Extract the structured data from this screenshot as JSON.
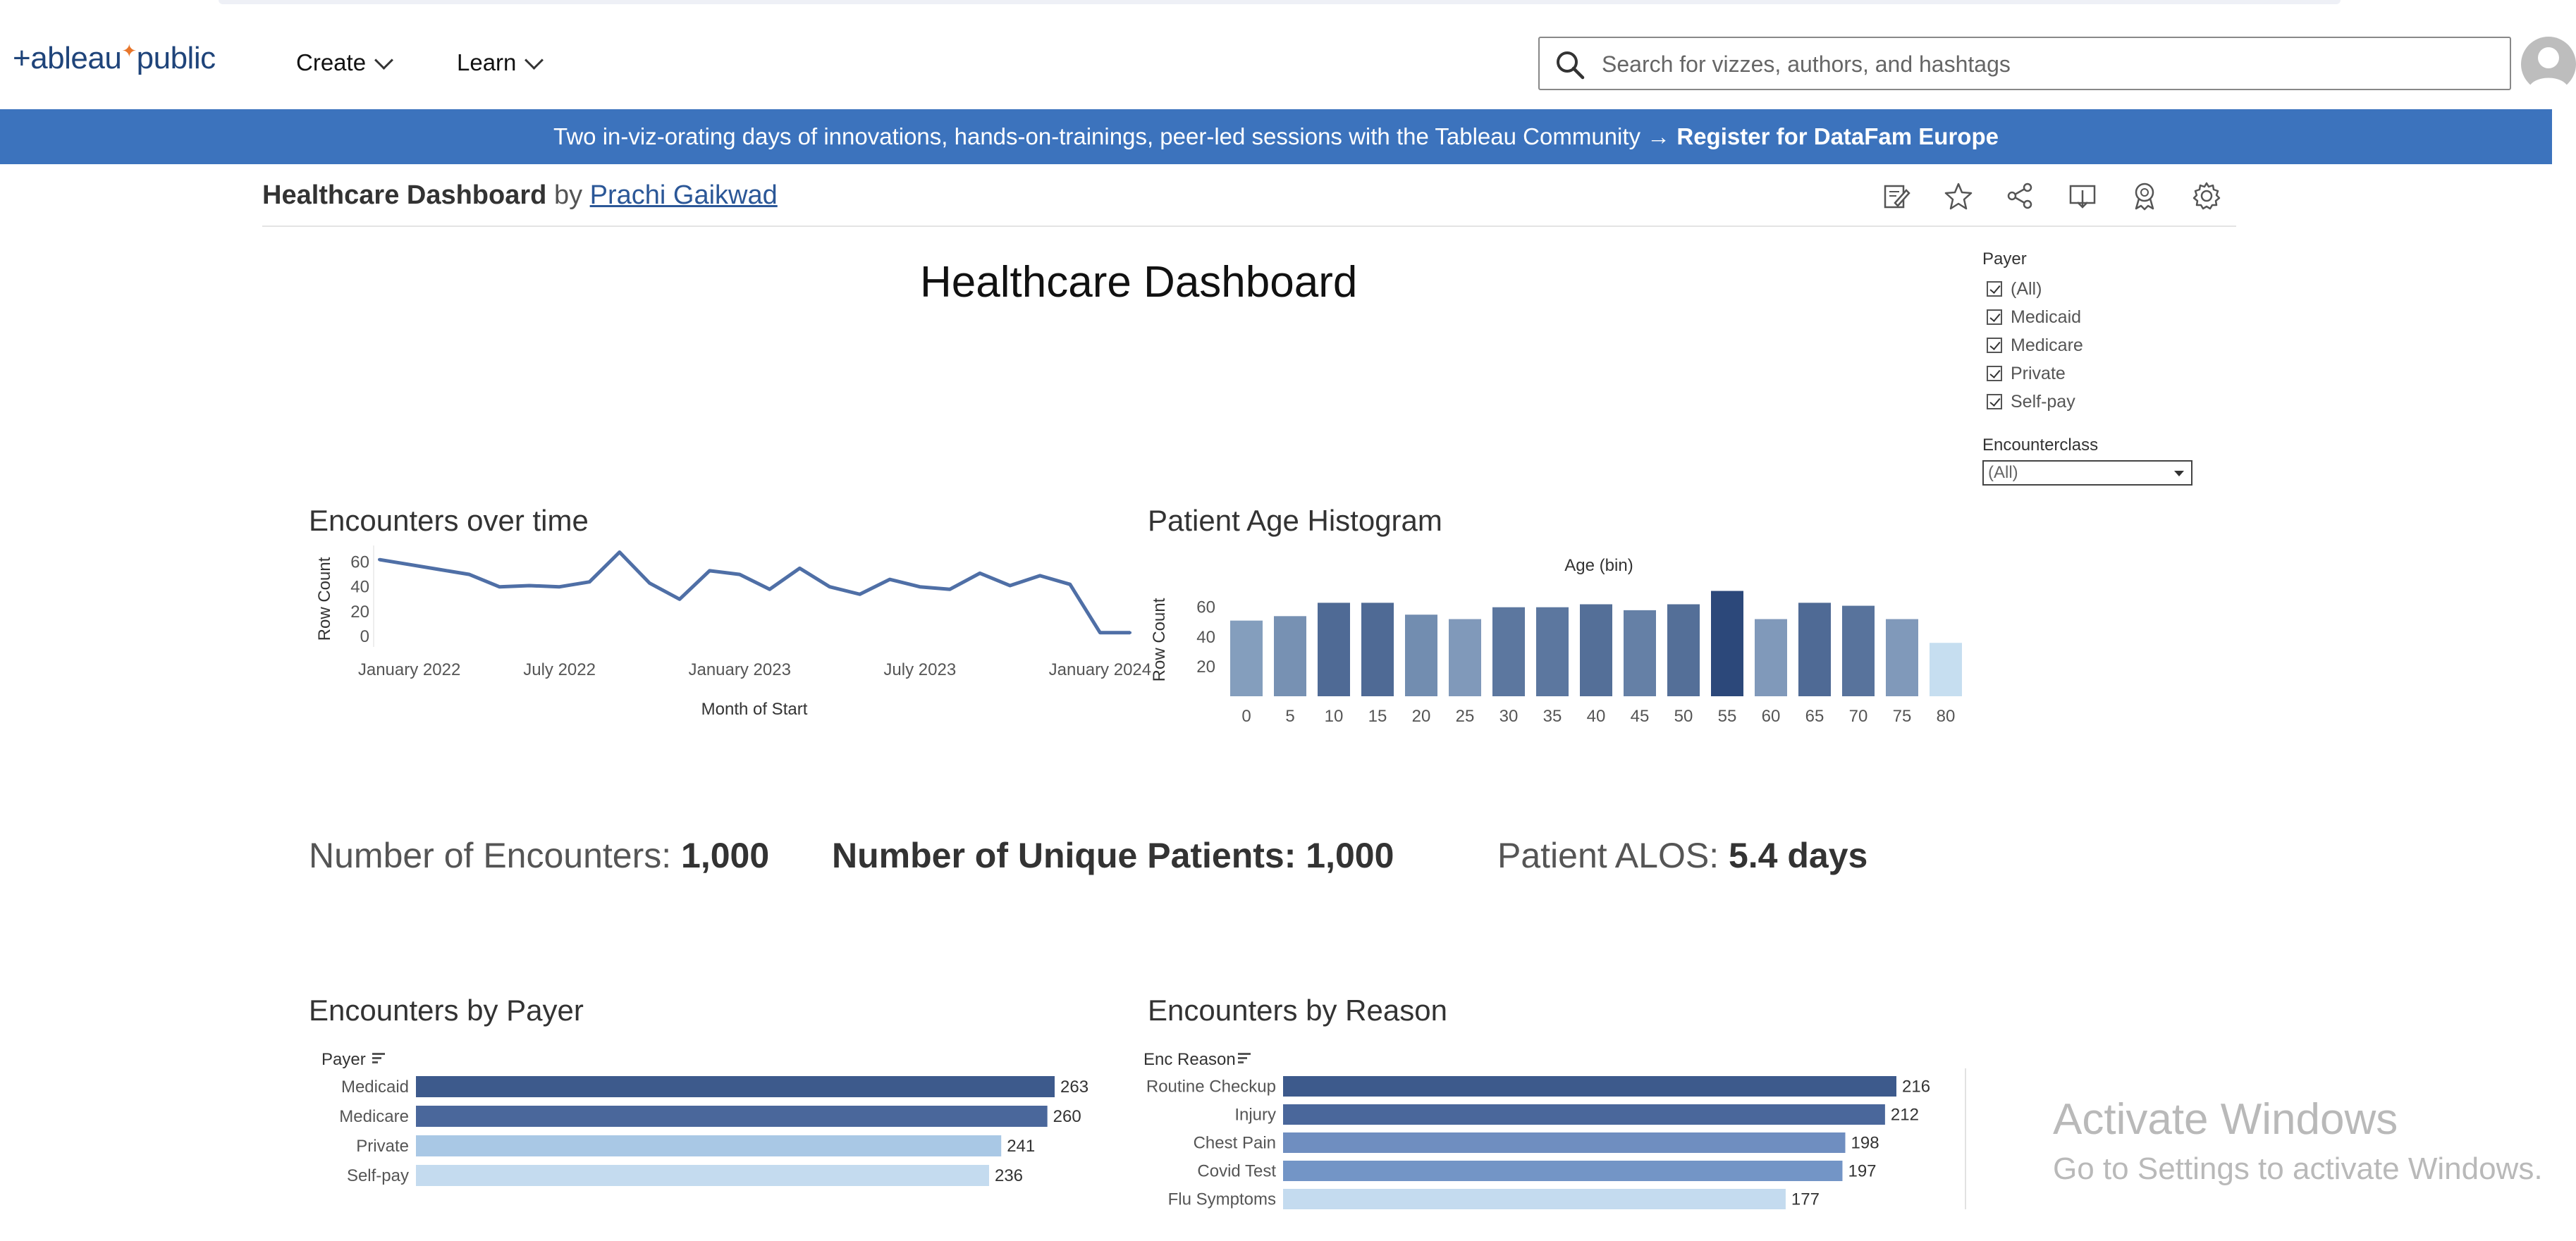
{
  "header": {
    "logo_text": "+ableau",
    "logo_suffix": "public",
    "nav": [
      {
        "label": "Create"
      },
      {
        "label": "Learn"
      }
    ],
    "search_placeholder": "Search for vizzes, authors, and hashtags"
  },
  "banner": {
    "text": "Two in-viz-orating days of innovations, hands-on-trainings, peer-led sessions with the Tableau Community → ",
    "link": "Register for DataFam Europe"
  },
  "viz": {
    "title": "Healthcare Dashboard",
    "by": "by",
    "author": "Prachi Gaikwad",
    "toolbar_icons": [
      "edit-icon",
      "star-icon",
      "share-icon",
      "download-icon",
      "award-icon",
      "settings-icon"
    ]
  },
  "dashboard": {
    "title": "Healthcare Dashboard",
    "kpis": [
      {
        "label": "Number of Encounters: ",
        "value": "1,000"
      },
      {
        "label": "Number of Unique Patients: ",
        "value": "1,000"
      },
      {
        "label": "Patient ALOS: ",
        "value": "5.4 days"
      }
    ]
  },
  "filters": {
    "payer_label": "Payer",
    "payer_options": [
      "(All)",
      "Medicaid",
      "Medicare",
      "Private",
      "Self-pay"
    ],
    "encounterclass_label": "Encounterclass",
    "encounterclass_value": "(All)"
  },
  "chart_data": [
    {
      "type": "line",
      "title": "Encounters over time",
      "xlabel": "Month of Start",
      "ylabel": "Row Count",
      "yticks": [
        0,
        20,
        40,
        60
      ],
      "xticks": [
        "January 2022",
        "July 2022",
        "January 2023",
        "July 2023",
        "January 2024"
      ],
      "x": [
        "2021-11",
        "2022-01",
        "2022-03",
        "2022-04",
        "2022-05",
        "2022-06",
        "2022-07",
        "2022-08",
        "2022-09",
        "2022-10",
        "2022-11",
        "2022-12",
        "2023-01",
        "2023-02",
        "2023-03",
        "2023-04",
        "2023-05",
        "2023-06",
        "2023-07",
        "2023-08",
        "2023-09",
        "2023-10",
        "2023-11",
        "2023-12",
        "2024-01",
        "2024-02"
      ],
      "values": [
        62,
        58,
        54,
        50,
        40,
        41,
        40,
        44,
        68,
        43,
        30,
        53,
        50,
        38,
        55,
        40,
        34,
        46,
        40,
        38,
        51,
        41,
        49,
        42,
        3,
        3
      ],
      "ylim": [
        0,
        70
      ]
    },
    {
      "type": "bar",
      "title": "Patient Age Histogram",
      "xlabel": "Age (bin)",
      "ylabel": "Row Count",
      "yticks": [
        20,
        40,
        60
      ],
      "categories": [
        "0",
        "5",
        "10",
        "15",
        "20",
        "25",
        "30",
        "35",
        "40",
        "45",
        "50",
        "55",
        "60",
        "65",
        "70",
        "75",
        "80"
      ],
      "values": [
        51,
        54,
        63,
        63,
        55,
        52,
        60,
        60,
        62,
        58,
        62,
        71,
        52,
        63,
        61,
        52,
        36
      ],
      "ylim": [
        0,
        76
      ]
    },
    {
      "type": "bar",
      "title": "Encounters by Payer",
      "axis_label": "Payer",
      "categories": [
        "Medicaid",
        "Medicare",
        "Private",
        "Self-pay"
      ],
      "values": [
        263,
        260,
        241,
        236
      ],
      "colors": [
        "#3d5a8c",
        "#4a679b",
        "#a9c8e5",
        "#c4dbef"
      ]
    },
    {
      "type": "bar",
      "title": "Encounters by Reason",
      "axis_label": "Enc Reason",
      "categories": [
        "Routine Checkup",
        "Injury",
        "Chest Pain",
        "Covid Test",
        "Flu Symptoms"
      ],
      "values": [
        216,
        212,
        198,
        197,
        177
      ],
      "colors": [
        "#3d5a8c",
        "#4a679b",
        "#6f8ec0",
        "#7395c6",
        "#c4dbef"
      ]
    }
  ],
  "watermark": {
    "line1": "Activate Windows",
    "line2": "Go to Settings to activate Windows."
  }
}
